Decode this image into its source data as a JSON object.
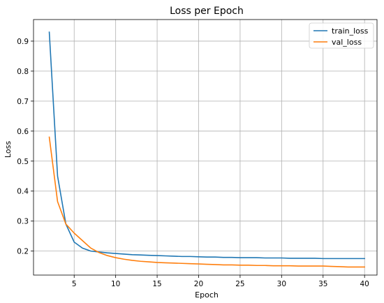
{
  "chart_data": {
    "type": "line",
    "title": "Loss per Epoch",
    "xlabel": "Epoch",
    "ylabel": "Loss",
    "xlim": [
      0.1,
      41.5
    ],
    "ylim": [
      0.12,
      0.972
    ],
    "xticks": [
      5,
      10,
      15,
      20,
      25,
      30,
      35,
      40
    ],
    "yticks": [
      0.2,
      0.3,
      0.4,
      0.5,
      0.6,
      0.7,
      0.8,
      0.9
    ],
    "grid": true,
    "legend": "top-right",
    "x": [
      2,
      3,
      4,
      5,
      6,
      7,
      8,
      9,
      10,
      11,
      12,
      13,
      14,
      15,
      16,
      17,
      18,
      19,
      20,
      21,
      22,
      23,
      24,
      25,
      26,
      27,
      28,
      29,
      30,
      31,
      32,
      33,
      34,
      35,
      36,
      37,
      38,
      39,
      40
    ],
    "series": [
      {
        "name": "train_loss",
        "color": "#1f77b4",
        "values": [
          0.93,
          0.45,
          0.29,
          0.23,
          0.21,
          0.2,
          0.197,
          0.194,
          0.192,
          0.19,
          0.188,
          0.187,
          0.186,
          0.185,
          0.184,
          0.183,
          0.182,
          0.182,
          0.181,
          0.18,
          0.18,
          0.179,
          0.179,
          0.178,
          0.178,
          0.178,
          0.177,
          0.177,
          0.177,
          0.176,
          0.176,
          0.176,
          0.176,
          0.175,
          0.175,
          0.175,
          0.175,
          0.175,
          0.175
        ]
      },
      {
        "name": "val_loss",
        "color": "#ff7f0e",
        "values": [
          0.58,
          0.365,
          0.29,
          0.26,
          0.235,
          0.21,
          0.195,
          0.185,
          0.178,
          0.173,
          0.169,
          0.166,
          0.164,
          0.162,
          0.161,
          0.16,
          0.159,
          0.158,
          0.157,
          0.156,
          0.155,
          0.154,
          0.154,
          0.153,
          0.153,
          0.152,
          0.152,
          0.151,
          0.151,
          0.151,
          0.15,
          0.15,
          0.15,
          0.15,
          0.149,
          0.148,
          0.147,
          0.147,
          0.147
        ]
      }
    ]
  }
}
